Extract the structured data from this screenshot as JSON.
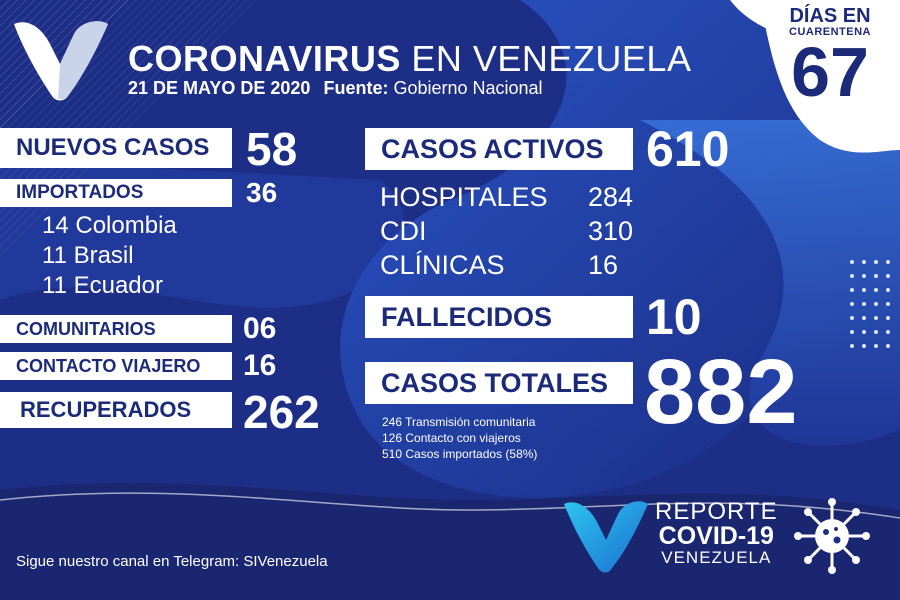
{
  "header": {
    "title_bold": "CORONAVIRUS",
    "title_thin": "EN VENEZUELA",
    "date": "21 DE MAYO DE 2020",
    "source_label": "Fuente:",
    "source_value": "Gobierno Nacional"
  },
  "quarantine": {
    "line1": "DÍAS EN",
    "line2": "CUARENTENA",
    "days": "67"
  },
  "left": {
    "nuevos_label": "NUEVOS CASOS",
    "nuevos_value": "58",
    "importados_label": "IMPORTADOS",
    "importados_value": "36",
    "importados_detail": [
      "14 Colombia",
      "11 Brasil",
      "11 Ecuador"
    ],
    "comunitarios_label": "COMUNITARIOS",
    "comunitarios_value": "06",
    "contacto_label": "CONTACTO VIAJERO",
    "contacto_value": "16",
    "recuperados_label": "RECUPERADOS",
    "recuperados_value": "262"
  },
  "right": {
    "activos_label": "CASOS ACTIVOS",
    "activos_value": "610",
    "locations": [
      {
        "name": "HOSPITALES",
        "value": "284"
      },
      {
        "name": "CDI",
        "value": "310"
      },
      {
        "name": "CLÍNICAS",
        "value": "16"
      }
    ],
    "fallecidos_label": "FALLECIDOS",
    "fallecidos_value": "10",
    "totales_label": "CASOS TOTALES",
    "totales_value": "882",
    "breakdown": [
      "246 Transmisión comunitaria",
      "126 Contacto con viajeros",
      "510 Casos importados (58%)"
    ]
  },
  "footer": {
    "telegram": "Sigue nuestro canal en Telegram: SIVenezuela"
  },
  "brand": {
    "line1": "REPORTE",
    "line2": "COVID-19",
    "line3": "VENEZUELA"
  },
  "icons": [
    "v-logo-icon",
    "virus-icon"
  ],
  "colors": {
    "background": "#1d2e86",
    "accent_cyan": "#2aa5e0",
    "label_text": "#1c2a7a",
    "white": "#ffffff"
  }
}
